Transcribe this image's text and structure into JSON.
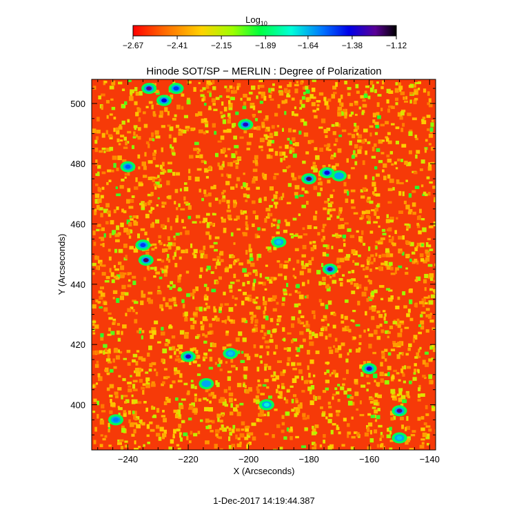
{
  "chart_data": {
    "type": "heatmap",
    "title": "Hinode SOT/SP − MERLIN : Degree of Polarization",
    "xlabel": "X (Arcseconds)",
    "ylabel": "Y (Arcseconds)",
    "xlim": [
      -252,
      -138
    ],
    "ylim": [
      385,
      508
    ],
    "x_ticks": [
      -240,
      -220,
      -200,
      -180,
      -160,
      -140
    ],
    "x_tick_labels": [
      "−240",
      "−220",
      "−200",
      "−180",
      "−160",
      "−140"
    ],
    "y_ticks": [
      400,
      420,
      440,
      460,
      480,
      500
    ],
    "y_tick_labels": [
      "400",
      "420",
      "440",
      "460",
      "480",
      "500"
    ],
    "colorbar": {
      "label": "Log",
      "label_subscript": "10",
      "range": [
        -2.67,
        -1.12
      ],
      "ticks": [
        -2.67,
        -2.41,
        -2.15,
        -1.89,
        -1.64,
        -1.38,
        -1.12
      ],
      "tick_labels": [
        "−2.67",
        "−2.41",
        "−2.15",
        "−1.89",
        "−1.64",
        "−1.38",
        "−1.12"
      ],
      "colormap": "rainbow (red → yellow → green → cyan → blue → purple → black)"
    },
    "colormap_stops": [
      "#ff0000",
      "#ff6a00",
      "#ffd200",
      "#9cff00",
      "#00ff3c",
      "#00ffd8",
      "#0074ff",
      "#0000e8",
      "#5a0096",
      "#000000"
    ],
    "background_level": -2.55,
    "features": [
      {
        "x": -233,
        "y": 505,
        "value": -1.3
      },
      {
        "x": -228,
        "y": 501,
        "value": -1.45
      },
      {
        "x": -224,
        "y": 505,
        "value": -1.55
      },
      {
        "x": -201,
        "y": 493,
        "value": -1.4
      },
      {
        "x": -240,
        "y": 479,
        "value": -1.6
      },
      {
        "x": -180,
        "y": 475,
        "value": -1.25
      },
      {
        "x": -174,
        "y": 477,
        "value": -1.45
      },
      {
        "x": -170,
        "y": 476,
        "value": -1.7
      },
      {
        "x": -234,
        "y": 448,
        "value": -1.25
      },
      {
        "x": -235,
        "y": 453,
        "value": -1.55
      },
      {
        "x": -173,
        "y": 445,
        "value": -1.3
      },
      {
        "x": -190,
        "y": 454,
        "value": -1.75
      },
      {
        "x": -220,
        "y": 416,
        "value": -1.4
      },
      {
        "x": -160,
        "y": 412,
        "value": -1.4
      },
      {
        "x": -214,
        "y": 407,
        "value": -1.7
      },
      {
        "x": -194,
        "y": 400,
        "value": -1.8
      },
      {
        "x": -244,
        "y": 395,
        "value": -1.65
      },
      {
        "x": -150,
        "y": 398,
        "value": -1.3
      },
      {
        "x": -206,
        "y": 417,
        "value": -1.75
      },
      {
        "x": -150,
        "y": 389,
        "value": -1.75
      }
    ]
  },
  "footer": {
    "timestamp": "1-Dec-2017 14:19:44.387"
  }
}
